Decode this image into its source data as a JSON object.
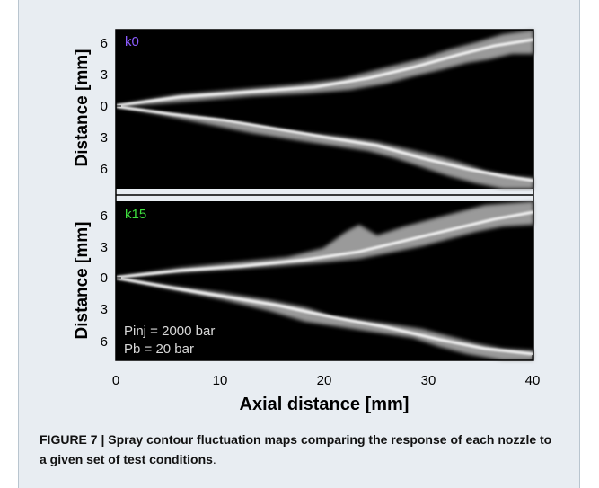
{
  "figure": {
    "panels": [
      {
        "label": "k0",
        "label_color": "#8c5cff"
      },
      {
        "label": "k15",
        "label_color": "#3ee03e"
      }
    ],
    "y_axis_label": "Distance [mm]",
    "x_axis_label": "Axial distance [mm]",
    "y_ticks": [
      "6",
      "3",
      "0",
      "3",
      "6"
    ],
    "x_ticks": [
      "0",
      "10",
      "20",
      "30",
      "40"
    ],
    "annotation": {
      "line1": "Pinj = 2000 bar",
      "line2": "Pb = 20 bar"
    }
  },
  "caption": {
    "lead": "FIGURE 7 | ",
    "text": "Spray contour fluctuation maps comparing the response of each nozzle to a given set of test conditions",
    "end": "."
  }
}
